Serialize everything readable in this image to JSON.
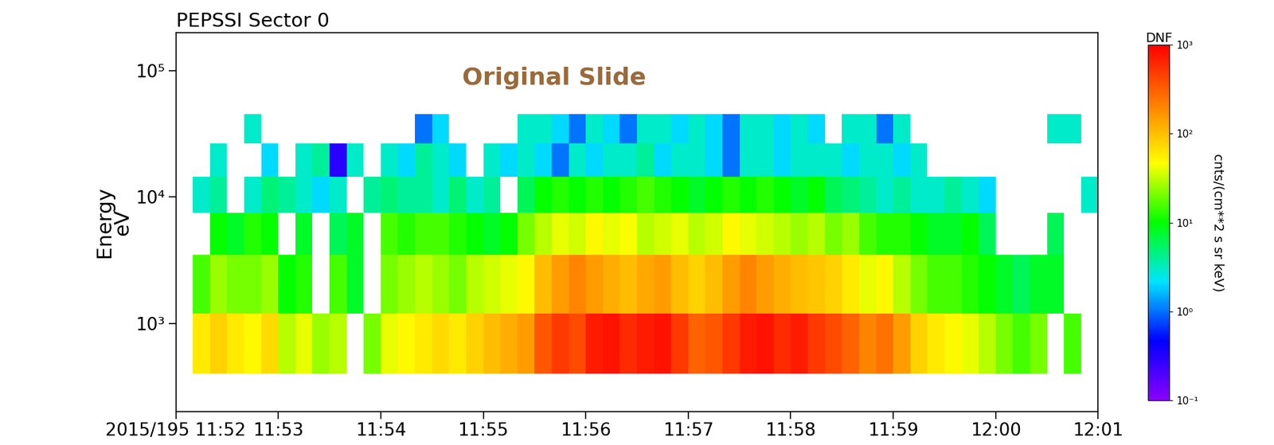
{
  "chart_data": {
    "type": "heatmap",
    "title": "PEPSSI Sector 0",
    "annotations": [
      "Original Slide"
    ],
    "y_label": "Energy\neV",
    "x": [
      "11:52:00",
      "11:52:10",
      "11:52:20",
      "11:52:30",
      "11:52:40",
      "11:52:50",
      "11:53:00",
      "11:53:10",
      "11:53:20",
      "11:53:30",
      "11:53:40",
      "11:53:50",
      "11:54:00",
      "11:54:10",
      "11:54:20",
      "11:54:30",
      "11:54:40",
      "11:54:50",
      "11:55:00",
      "11:55:10",
      "11:55:20",
      "11:55:30",
      "11:55:40",
      "11:55:50",
      "11:56:00",
      "11:56:10",
      "11:56:20",
      "11:56:30",
      "11:56:40",
      "11:56:50",
      "11:57:00",
      "11:57:10",
      "11:57:20",
      "11:57:30",
      "11:57:40",
      "11:57:50",
      "11:58:00",
      "11:58:10",
      "11:58:20",
      "11:58:30",
      "11:58:40",
      "11:58:50",
      "11:59:00",
      "11:59:10",
      "11:59:20",
      "11:59:30",
      "11:59:40",
      "11:59:50",
      "12:00:00",
      "12:00:10",
      "12:00:20",
      "12:00:30",
      "12:00:40",
      "12:00:50",
      "12:01:00"
    ],
    "y": [
      400,
      1200,
      3500,
      7500,
      14400,
      26400,
      45400
    ],
    "cells": [
      [
        null,
        60,
        80,
        60,
        50,
        70,
        30,
        40,
        25,
        30,
        null,
        20,
        40,
        50,
        60,
        70,
        60,
        80,
        100,
        120,
        150,
        350,
        500,
        400,
        700,
        800,
        600,
        700,
        800,
        500,
        300,
        350,
        500,
        700,
        800,
        600,
        700,
        500,
        400,
        300,
        200,
        250,
        150,
        80,
        60,
        50,
        40,
        30,
        20,
        15,
        20,
        null,
        15,
        null
      ],
      [
        null,
        15,
        25,
        20,
        20,
        25,
        10,
        12,
        null,
        15,
        8,
        null,
        20,
        25,
        30,
        25,
        20,
        30,
        35,
        40,
        50,
        100,
        150,
        200,
        150,
        120,
        100,
        130,
        150,
        100,
        80,
        100,
        150,
        200,
        150,
        120,
        100,
        90,
        80,
        60,
        40,
        50,
        30,
        20,
        15,
        15,
        12,
        10,
        8,
        6,
        8,
        8,
        null,
        null
      ],
      [
        null,
        null,
        10,
        8,
        12,
        10,
        null,
        8,
        null,
        6,
        8,
        null,
        15,
        12,
        15,
        15,
        12,
        10,
        8,
        10,
        20,
        30,
        40,
        35,
        50,
        40,
        45,
        30,
        35,
        40,
        30,
        35,
        50,
        40,
        35,
        30,
        25,
        30,
        20,
        25,
        15,
        12,
        12,
        10,
        8,
        8,
        10,
        6,
        null,
        null,
        null,
        6,
        null,
        null
      ],
      [
        null,
        3,
        4,
        null,
        3,
        5,
        4,
        3,
        2,
        3,
        null,
        4,
        5,
        4,
        4,
        3,
        5,
        3,
        4,
        null,
        6,
        10,
        12,
        10,
        12,
        10,
        12,
        15,
        12,
        10,
        8,
        10,
        12,
        10,
        12,
        10,
        8,
        10,
        6,
        5,
        4,
        3,
        4,
        3,
        3,
        4,
        3,
        2,
        null,
        null,
        null,
        null,
        null,
        3
      ],
      [
        null,
        null,
        3,
        null,
        null,
        2,
        null,
        3,
        4,
        0.3,
        3,
        null,
        3,
        2,
        4,
        3,
        2,
        null,
        3,
        2,
        3,
        2,
        1,
        3,
        2,
        3,
        3,
        4,
        2,
        3,
        3,
        2,
        1,
        3,
        3,
        2,
        3,
        3,
        3,
        2,
        3,
        3,
        2,
        3,
        null,
        null,
        null,
        null,
        null,
        null,
        null,
        null,
        null,
        null
      ],
      [
        null,
        null,
        null,
        null,
        3,
        null,
        null,
        null,
        null,
        null,
        null,
        null,
        null,
        null,
        1,
        2,
        null,
        null,
        null,
        null,
        3,
        3,
        2,
        1,
        3,
        2,
        1,
        3,
        3,
        2,
        3,
        2,
        1,
        3,
        3,
        2,
        3,
        2,
        null,
        3,
        3,
        1,
        3,
        null,
        null,
        null,
        null,
        null,
        null,
        null,
        null,
        3,
        3,
        null
      ]
    ],
    "xlim": [
      "11:52:00",
      "12:01:00"
    ],
    "xticks": [
      {
        "value": "11:52:00",
        "label": "2015/195 11:52"
      },
      {
        "value": "11:53:00",
        "label": "11:53"
      },
      {
        "value": "11:54:00",
        "label": "11:54"
      },
      {
        "value": "11:55:00",
        "label": "11:55"
      },
      {
        "value": "11:56:00",
        "label": "11:56"
      },
      {
        "value": "11:57:00",
        "label": "11:57"
      },
      {
        "value": "11:58:00",
        "label": "11:58"
      },
      {
        "value": "11:59:00",
        "label": "11:59"
      },
      {
        "value": "12:00:00",
        "label": "12:00"
      },
      {
        "value": "12:01:00",
        "label": "12:01"
      }
    ],
    "ylim": [
      200,
      200000
    ],
    "yticks": [
      {
        "value": 1000,
        "label": "10³"
      },
      {
        "value": 10000,
        "label": "10⁴"
      },
      {
        "value": 100000,
        "label": "10⁵"
      }
    ],
    "log": "y",
    "grid": false,
    "colorbar": {
      "title": "DNF",
      "label": "cnts/(cm**2 s sr keV)",
      "lim": [
        0.1,
        1000
      ],
      "ticks": [
        {
          "value": 0.1,
          "label": "10⁻¹"
        },
        {
          "value": 1,
          "label": "10⁰"
        },
        {
          "value": 10,
          "label": "10¹"
        },
        {
          "value": 100,
          "label": "10²"
        },
        {
          "value": 1000,
          "label": "10³"
        }
      ],
      "log": true
    }
  }
}
